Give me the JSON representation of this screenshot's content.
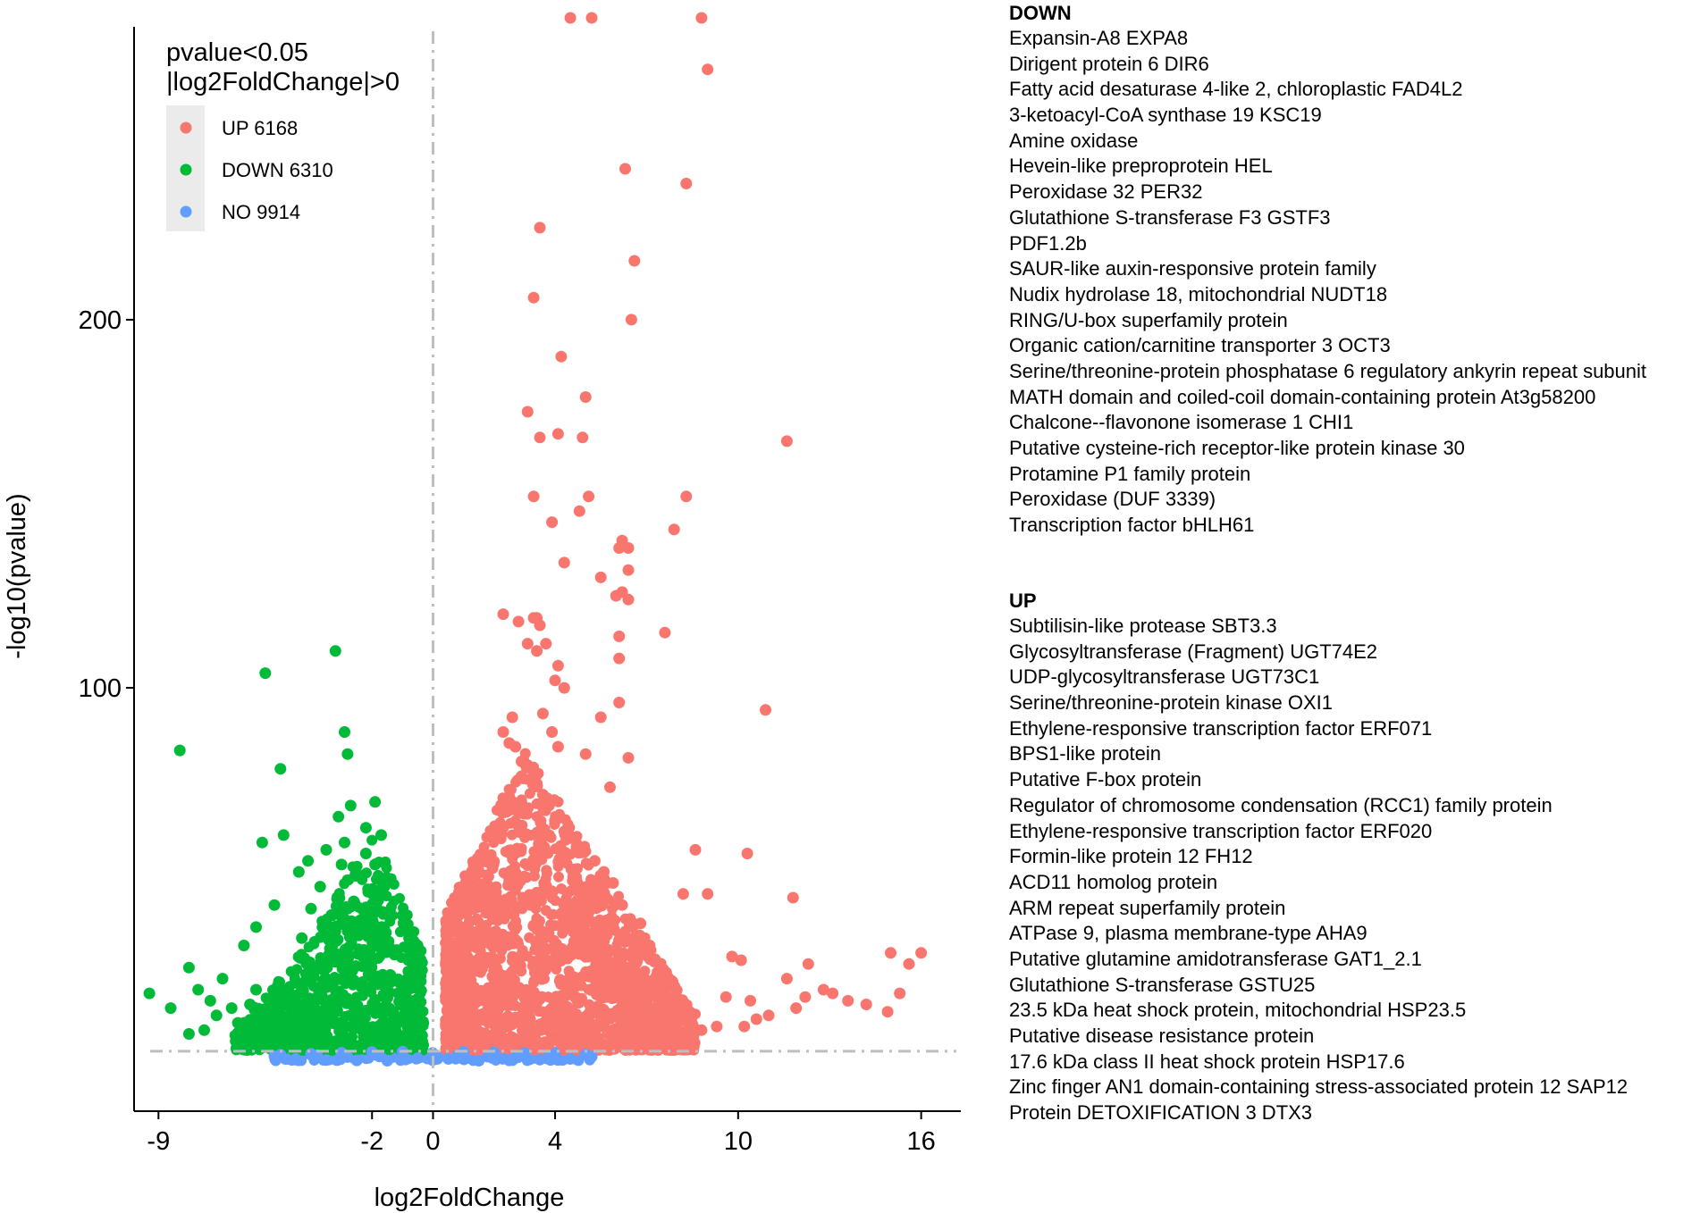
{
  "chart_data": {
    "type": "scatter",
    "title": "",
    "xlabel": "log2FoldChange",
    "ylabel": "-log10(pvalue)",
    "xlim": [
      -9.8,
      17.3
    ],
    "ylim": [
      -15,
      282
    ],
    "x_ticks": [
      {
        "value": -9,
        "label": "-9"
      },
      {
        "value": -2,
        "label": "-2"
      },
      {
        "value": 0,
        "label": "0"
      },
      {
        "value": 4,
        "label": "4"
      },
      {
        "value": 10,
        "label": "10"
      },
      {
        "value": 16,
        "label": "16"
      }
    ],
    "y_ticks": [
      {
        "value": 100,
        "label": "100"
      },
      {
        "value": 200,
        "label": "200"
      }
    ],
    "thresholds": {
      "x": 0,
      "y": 1.3,
      "style": "dashed gray"
    },
    "grid": false,
    "legend": {
      "title_lines": [
        "pvalue<0.05",
        "|log2FoldChange|>0"
      ],
      "position": "top-left",
      "entries": [
        {
          "label": "UP 6168",
          "color": "#F8766D"
        },
        {
          "label": "DOWN 6310",
          "color": "#00BA38"
        },
        {
          "label": "NO 9914",
          "color": "#619CFF"
        }
      ]
    },
    "series": [
      {
        "name": "UP 6168",
        "color": "#F8766D",
        "count": 6168,
        "points": [
          [
            4.5,
            282
          ],
          [
            5.2,
            282
          ],
          [
            8.8,
            282
          ],
          [
            9.0,
            268
          ],
          [
            6.3,
            241
          ],
          [
            8.3,
            237
          ],
          [
            3.5,
            225
          ],
          [
            6.6,
            216
          ],
          [
            3.3,
            206
          ],
          [
            6.5,
            200
          ],
          [
            4.2,
            190
          ],
          [
            5.0,
            179
          ],
          [
            3.1,
            175
          ],
          [
            11.6,
            167
          ],
          [
            4.1,
            169
          ],
          [
            4.9,
            168
          ],
          [
            3.5,
            168
          ],
          [
            5.1,
            152
          ],
          [
            3.3,
            152
          ],
          [
            8.3,
            152
          ],
          [
            4.8,
            148
          ],
          [
            6.2,
            140
          ],
          [
            3.9,
            145
          ],
          [
            7.9,
            143
          ],
          [
            6.4,
            138
          ],
          [
            6.1,
            138
          ],
          [
            4.3,
            134
          ],
          [
            6.4,
            132
          ],
          [
            5.5,
            130
          ],
          [
            6.2,
            126
          ],
          [
            6.0,
            125
          ],
          [
            6.4,
            124
          ],
          [
            2.3,
            120
          ],
          [
            2.8,
            118
          ],
          [
            3.3,
            119
          ],
          [
            3.5,
            117
          ],
          [
            3.4,
            119
          ],
          [
            7.6,
            115
          ],
          [
            6.1,
            114
          ],
          [
            3.1,
            112
          ],
          [
            3.7,
            112
          ],
          [
            4.1,
            106
          ],
          [
            3.4,
            110
          ],
          [
            6.1,
            108
          ],
          [
            4.0,
            102
          ],
          [
            4.3,
            100
          ],
          [
            10.9,
            94
          ],
          [
            6.1,
            96
          ],
          [
            2.6,
            92
          ],
          [
            3.6,
            93
          ],
          [
            5.5,
            92
          ],
          [
            3.9,
            88
          ],
          [
            4.1,
            84
          ],
          [
            5.0,
            82
          ],
          [
            6.4,
            81
          ],
          [
            3.1,
            79
          ],
          [
            2.9,
            76
          ],
          [
            5.8,
            73
          ],
          [
            8.6,
            56
          ],
          [
            10.3,
            55
          ],
          [
            8.2,
            44
          ],
          [
            9.0,
            44
          ],
          [
            11.8,
            43
          ],
          [
            15.0,
            28
          ],
          [
            16.0,
            28
          ],
          [
            15.6,
            25
          ],
          [
            15.3,
            17
          ],
          [
            10.1,
            26
          ],
          [
            9.8,
            27
          ],
          [
            12.3,
            25
          ],
          [
            11.6,
            21
          ],
          [
            12.8,
            18
          ],
          [
            12.2,
            16
          ],
          [
            11.9,
            13
          ],
          [
            10.4,
            15
          ],
          [
            9.6,
            16
          ],
          [
            13.1,
            17
          ],
          [
            13.6,
            15
          ],
          [
            14.2,
            14
          ],
          [
            14.9,
            12
          ],
          [
            9.3,
            8
          ],
          [
            8.8,
            7
          ],
          [
            8.1,
            6
          ],
          [
            10.6,
            10
          ],
          [
            10.2,
            8
          ],
          [
            11.0,
            11
          ],
          [
            7.4,
            15
          ],
          [
            6.9,
            18
          ],
          [
            6.5,
            23
          ],
          [
            7.1,
            30
          ],
          [
            6.8,
            36
          ],
          [
            6.2,
            41
          ],
          [
            5.9,
            47
          ],
          [
            5.3,
            53
          ],
          [
            4.6,
            59
          ],
          [
            4.1,
            65
          ],
          [
            3.6,
            71
          ],
          [
            3.2,
            78
          ],
          [
            2.7,
            84
          ],
          [
            2.3,
            88
          ],
          [
            5.6,
            50
          ],
          [
            4.9,
            56
          ],
          [
            4.3,
            61
          ],
          [
            3.8,
            68
          ],
          [
            3.4,
            74
          ],
          [
            2.9,
            80
          ],
          [
            2.5,
            85
          ],
          [
            5.7,
            36
          ],
          [
            6.3,
            31
          ],
          [
            5.1,
            44
          ]
        ]
      },
      {
        "name": "DOWN 6310",
        "color": "#00BA38",
        "count": 6310,
        "points": [
          [
            -3.2,
            110
          ],
          [
            -5.5,
            104
          ],
          [
            -2.9,
            88
          ],
          [
            -8.3,
            83
          ],
          [
            -2.8,
            82
          ],
          [
            -5.0,
            78
          ],
          [
            -1.9,
            69
          ],
          [
            -2.7,
            68
          ],
          [
            -3.1,
            65
          ],
          [
            -2.2,
            62
          ],
          [
            -4.9,
            60
          ],
          [
            -1.7,
            60
          ],
          [
            -2.9,
            58
          ],
          [
            -5.6,
            58
          ],
          [
            -3.5,
            56
          ],
          [
            -2.2,
            55
          ],
          [
            -4.1,
            53
          ],
          [
            -3.0,
            52
          ],
          [
            -1.9,
            52
          ],
          [
            -4.4,
            50
          ],
          [
            -2.4,
            49
          ],
          [
            -3.7,
            46
          ],
          [
            -1.6,
            46
          ],
          [
            -5.2,
            41
          ],
          [
            -4.0,
            40
          ],
          [
            -2.8,
            40
          ],
          [
            -5.8,
            35
          ],
          [
            -6.2,
            30
          ],
          [
            -4.3,
            32
          ],
          [
            -2.5,
            36
          ],
          [
            -8.0,
            24
          ],
          [
            -9.3,
            17
          ],
          [
            -7.7,
            18
          ],
          [
            -8.6,
            13
          ],
          [
            -6.9,
            21
          ],
          [
            -7.3,
            15
          ],
          [
            -6.6,
            13
          ],
          [
            -7.1,
            11
          ],
          [
            -6.0,
            14
          ],
          [
            -5.8,
            18
          ],
          [
            -6.4,
            9
          ],
          [
            -7.5,
            7
          ],
          [
            -8.0,
            6
          ],
          [
            -5.1,
            9
          ],
          [
            -4.5,
            12
          ],
          [
            -4.8,
            18
          ],
          [
            -3.9,
            24
          ],
          [
            -3.3,
            30
          ],
          [
            -3.0,
            38
          ],
          [
            -2.6,
            42
          ],
          [
            -2.0,
            45
          ],
          [
            -1.6,
            33
          ],
          [
            -1.2,
            28
          ],
          [
            -0.9,
            18
          ],
          [
            -0.7,
            12
          ],
          [
            -0.4,
            6
          ],
          [
            -1.4,
            22
          ],
          [
            -1.0,
            15
          ],
          [
            -2.3,
            27
          ],
          [
            -3.6,
            20
          ]
        ]
      },
      {
        "name": "NO 9914",
        "color": "#619CFF",
        "count": 9914,
        "points": [
          [
            -5.0,
            0.3
          ],
          [
            -4.0,
            0.6
          ],
          [
            -3.0,
            0.9
          ],
          [
            -2.0,
            1.1
          ],
          [
            -1.0,
            1.2
          ],
          [
            0.0,
            0.4
          ],
          [
            1.0,
            1.1
          ],
          [
            2.0,
            1.0
          ],
          [
            3.0,
            0.8
          ],
          [
            4.0,
            0.6
          ],
          [
            5.0,
            0.4
          ],
          [
            -4.5,
            -0.8
          ],
          [
            -3.5,
            -1.1
          ],
          [
            -2.5,
            -1.2
          ],
          [
            -1.5,
            -1.3
          ],
          [
            -0.5,
            -0.6
          ],
          [
            0.5,
            -0.8
          ],
          [
            1.5,
            -1.3
          ],
          [
            2.5,
            -1.2
          ],
          [
            3.5,
            -1.0
          ],
          [
            4.5,
            -0.8
          ],
          [
            5.2,
            -0.2
          ],
          [
            -5.2,
            -0.1
          ],
          [
            -3.8,
            0.2
          ],
          [
            -2.8,
            -0.3
          ],
          [
            -1.8,
            0.1
          ],
          [
            0.8,
            0.2
          ],
          [
            1.8,
            -0.2
          ],
          [
            2.8,
            0.2
          ],
          [
            3.8,
            -0.1
          ]
        ]
      }
    ]
  },
  "gene_lists": [
    {
      "title": "DOWN",
      "genes": [
        "Expansin-A8 EXPA8",
        "Dirigent protein 6 DIR6",
        "Fatty acid desaturase 4-like 2, chloroplastic FAD4L2",
        "3-ketoacyl-CoA synthase 19 KSC19",
        "Amine oxidase",
        "Hevein-like preproprotein HEL",
        "Peroxidase 32 PER32",
        "Glutathione S-transferase F3 GSTF3",
        "PDF1.2b",
        "SAUR-like auxin-responsive protein family",
        "Nudix hydrolase 18, mitochondrial NUDT18",
        "RING/U-box superfamily protein",
        "Organic cation/carnitine transporter 3 OCT3",
        "Serine/threonine-protein phosphatase 6 regulatory ankyrin repeat subunit",
        "MATH domain and coiled-coil domain-containing protein At3g58200",
        "Chalcone--flavonone isomerase 1 CHI1",
        "Putative cysteine-rich receptor-like protein kinase 30",
        "Protamine P1 family protein",
        "Peroxidase (DUF 3339)",
        "Transcription factor bHLH61"
      ]
    },
    {
      "title": "UP",
      "genes": [
        "Subtilisin-like protease SBT3.3",
        "Glycosyltransferase (Fragment) UGT74E2",
        "UDP-glycosyltransferase UGT73C1",
        "Serine/threonine-protein kinase OXI1",
        "Ethylene-responsive transcription factor ERF071",
        "BPS1-like protein",
        "Putative F-box protein",
        "Regulator of chromosome condensation (RCC1) family protein",
        "Ethylene-responsive transcription factor ERF020",
        "Formin-like protein 12 FH12",
        "ACD11 homolog protein",
        "ARM repeat superfamily protein",
        "ATPase 9, plasma membrane-type AHA9",
        "Putative glutamine amidotransferase GAT1_2.1",
        "Glutathione S-transferase GSTU25",
        "23.5 kDa heat shock protein, mitochondrial HSP23.5",
        "Putative disease resistance protein",
        "17.6 kDa class II heat shock protein HSP17.6",
        "Zinc finger AN1 domain-containing stress-associated protein 12 SAP12",
        "Protein DETOXIFICATION 3 DTX3"
      ]
    }
  ]
}
